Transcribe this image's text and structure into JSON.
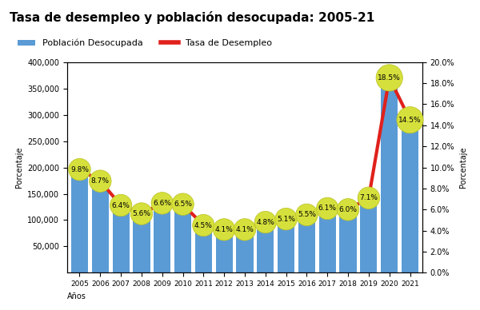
{
  "chart_data": {
    "type": "bar",
    "title": "Tasa de desempleo y población desocupada: 2005-21",
    "x_label": "Años",
    "y_label": "Porcentaje",
    "y2_label": "Porcentaje",
    "categories": [
      "2005",
      "2006",
      "2007",
      "2008",
      "2009",
      "2010",
      "2011",
      "2012",
      "2013",
      "2014",
      "2015",
      "2016",
      "2017",
      "2018",
      "2019",
      "2020",
      "2021"
    ],
    "series": [
      {
        "name": "Población Desocupada",
        "type": "bar",
        "color": "#5b9bd5",
        "values": [
          195000,
          175000,
          128000,
          112000,
          133000,
          130000,
          95000,
          88000,
          87000,
          98000,
          105000,
          113000,
          125000,
          122000,
          145000,
          375000,
          290000
        ]
      },
      {
        "name": "Tasa de Desempleo",
        "type": "line",
        "color": "#e0201c",
        "axis": "y2",
        "marker": "o",
        "data_labels": true,
        "values": [
          9.8,
          8.7,
          6.4,
          5.6,
          6.6,
          6.5,
          4.5,
          4.1,
          4.1,
          4.8,
          5.1,
          5.5,
          6.1,
          6.0,
          7.1,
          18.5,
          14.5
        ],
        "value_labels": [
          "9.8%",
          "8.7%",
          "6.4%",
          "5.6%",
          "6.6%",
          "6.5%",
          "4.5%",
          "4.1%",
          "4.1%",
          "4.8%",
          "5.1%",
          "5.5%",
          "6.1%",
          "6.0%",
          "7.1%",
          "18.5%",
          "14.5%"
        ]
      }
    ],
    "ylim": [
      0,
      400000
    ],
    "yticks": [
      {
        "value": 50000,
        "label": "50,000"
      },
      {
        "value": 100000,
        "label": "100,000"
      },
      {
        "value": 150000,
        "label": "150,000"
      },
      {
        "value": 200000,
        "label": "200,000"
      },
      {
        "value": 250000,
        "label": "250,000"
      },
      {
        "value": 300000,
        "label": "300,000"
      },
      {
        "value": 350000,
        "label": "350,000"
      },
      {
        "value": 400000,
        "label": "400,000"
      }
    ],
    "y2lim": [
      0,
      20
    ],
    "y2ticks": [
      {
        "value": 0,
        "label": "0.0%"
      },
      {
        "value": 2,
        "label": "2.0%"
      },
      {
        "value": 4,
        "label": "4.0%"
      },
      {
        "value": 6,
        "label": "6.0%"
      },
      {
        "value": 8,
        "label": "8.0%"
      },
      {
        "value": 10,
        "label": "10.0%"
      },
      {
        "value": 12,
        "label": "12.0%"
      },
      {
        "value": 14,
        "label": "14.0%"
      },
      {
        "value": 16,
        "label": "16.0%"
      },
      {
        "value": 18,
        "label": "18.0%"
      },
      {
        "value": 20,
        "label": "20.0%"
      }
    ],
    "legend": "upper left",
    "grid": false
  }
}
